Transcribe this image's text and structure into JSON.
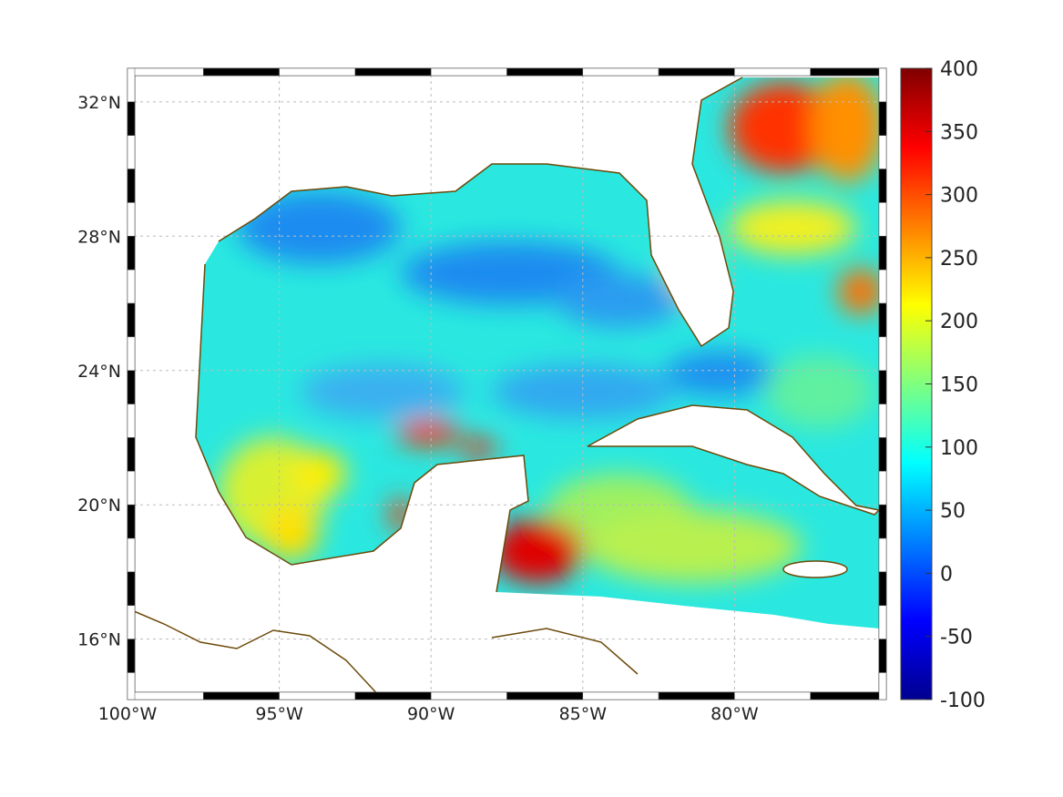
{
  "map": {
    "lon_range": [
      -100,
      -75
    ],
    "lat_range": [
      14.2,
      33
    ],
    "lon_ticks": [
      {
        "value": -100,
        "label": "100°W"
      },
      {
        "value": -95,
        "label": "95°W"
      },
      {
        "value": -90,
        "label": "90°W"
      },
      {
        "value": -85,
        "label": "85°W"
      },
      {
        "value": -80,
        "label": "80°W"
      }
    ],
    "lat_ticks": [
      {
        "value": 32,
        "label": "32°N"
      },
      {
        "value": 28,
        "label": "28°N"
      },
      {
        "value": 24,
        "label": "24°N"
      },
      {
        "value": 20,
        "label": "20°N"
      },
      {
        "value": 16,
        "label": "16°N"
      }
    ],
    "coast_color": "#6b4a0a",
    "base_field_color": "#2ae8e0"
  },
  "colorbar": {
    "colormap": "jet",
    "range": [
      -100,
      400
    ],
    "ticks": [
      "400",
      "350",
      "300",
      "250",
      "200",
      "150",
      "100",
      "50",
      "0",
      "-50",
      "-100"
    ]
  }
}
